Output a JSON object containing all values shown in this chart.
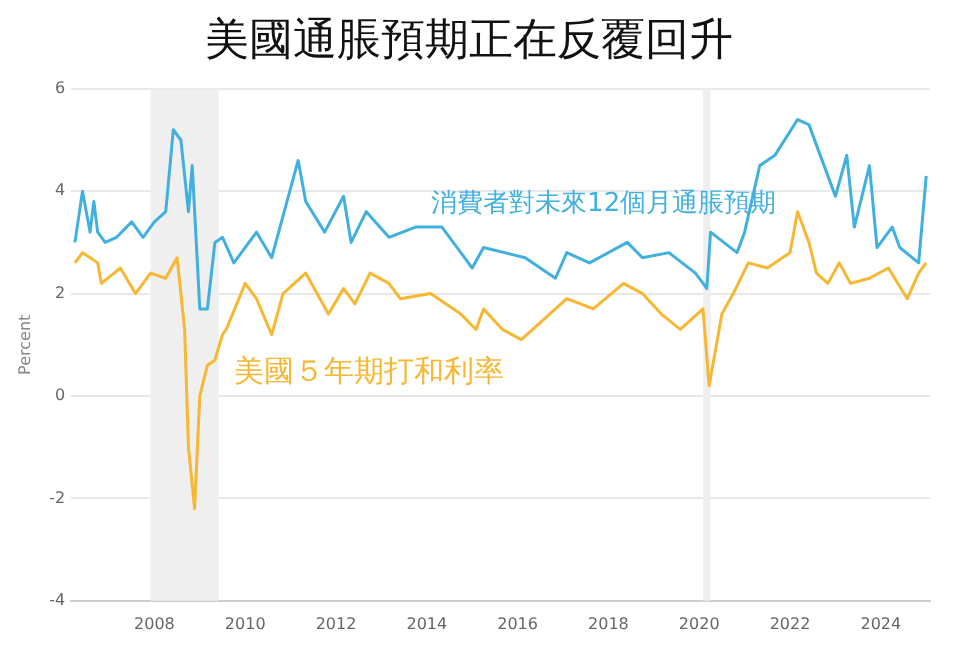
{
  "chart_data": {
    "type": "line",
    "title": "美國通脹預期正在反覆回升",
    "ylabel": "Percent",
    "xlim": [
      "2006-03",
      "2025-02"
    ],
    "xticks": [
      "2008",
      "2010",
      "2012",
      "2014",
      "2016",
      "2018",
      "2020",
      "2022",
      "2024"
    ],
    "ylim": [
      -4,
      6
    ],
    "yticks": [
      -4,
      -2,
      0,
      2,
      4,
      6
    ],
    "grid": "y",
    "legend": false,
    "marker": "none",
    "line_style": "solid",
    "bands": [
      {
        "axis": "x",
        "from": "2007-12",
        "to": "2009-06",
        "color": "#efefef"
      },
      {
        "axis": "x",
        "from": "2020-02",
        "to": "2020-04",
        "color": "#efefef"
      }
    ],
    "series": [
      {
        "name": "消費者對未來12個月通脹預期",
        "color": "#41b0df",
        "x": [
          "2006-04",
          "2006-06",
          "2006-08",
          "2006-09",
          "2006-10",
          "2006-12",
          "2007-03",
          "2007-07",
          "2007-10",
          "2008-01",
          "2008-04",
          "2008-06",
          "2008-08",
          "2008-10",
          "2008-11",
          "2009-01",
          "2009-03",
          "2009-05",
          "2009-07",
          "2009-10",
          "2010-04",
          "2010-08",
          "2011-03",
          "2011-05",
          "2011-10",
          "2012-03",
          "2012-05",
          "2012-09",
          "2013-03",
          "2013-10",
          "2014-05",
          "2015-01",
          "2015-04",
          "2016-03",
          "2016-11",
          "2017-02",
          "2017-08",
          "2018-06",
          "2018-10",
          "2019-05",
          "2019-12",
          "2020-03",
          "2020-04",
          "2020-11",
          "2021-01",
          "2021-05",
          "2021-09",
          "2022-03",
          "2022-06",
          "2022-09",
          "2023-01",
          "2023-04",
          "2023-06",
          "2023-10",
          "2023-12",
          "2024-04",
          "2024-06",
          "2024-11",
          "2025-01"
        ],
        "values": [
          3.0,
          4.0,
          3.2,
          3.8,
          3.2,
          3.0,
          3.1,
          3.4,
          3.1,
          3.4,
          3.6,
          5.2,
          5.0,
          3.6,
          4.5,
          1.7,
          1.7,
          3.0,
          3.1,
          2.6,
          3.2,
          2.7,
          4.6,
          3.8,
          3.2,
          3.9,
          3.0,
          3.6,
          3.1,
          3.3,
          3.3,
          2.5,
          2.9,
          2.7,
          2.3,
          2.8,
          2.6,
          3.0,
          2.7,
          2.8,
          2.4,
          2.1,
          3.2,
          2.8,
          3.2,
          4.5,
          4.7,
          5.4,
          5.3,
          4.7,
          3.9,
          4.7,
          3.3,
          4.5,
          2.9,
          3.3,
          2.9,
          2.6,
          4.3
        ]
      },
      {
        "name": "美國５年期打和利率",
        "color": "#f7b733",
        "x": [
          "2006-04",
          "2006-06",
          "2006-10",
          "2006-11",
          "2007-04",
          "2007-08",
          "2007-12",
          "2008-04",
          "2008-07",
          "2008-09",
          "2008-10",
          "2008-11-20",
          "2009-01",
          "2009-03",
          "2009-05",
          "2009-07",
          "2009-08",
          "2010-01",
          "2010-04",
          "2010-08",
          "2010-11",
          "2011-05",
          "2011-08",
          "2011-11",
          "2012-03",
          "2012-06",
          "2012-10",
          "2013-03",
          "2013-06",
          "2014-02",
          "2014-10",
          "2015-02",
          "2015-04",
          "2015-09",
          "2016-02",
          "2016-05",
          "2017-02",
          "2017-09",
          "2018-05",
          "2018-10",
          "2019-03",
          "2019-08",
          "2020-02",
          "2020-03-20",
          "2020-07",
          "2020-10",
          "2021-02",
          "2021-07",
          "2022-01",
          "2022-03",
          "2022-06",
          "2022-08",
          "2022-11",
          "2023-02",
          "2023-05",
          "2023-10",
          "2024-03",
          "2024-08",
          "2024-11",
          "2025-01"
        ],
        "values": [
          2.6,
          2.8,
          2.6,
          2.2,
          2.5,
          2.0,
          2.4,
          2.3,
          2.7,
          1.3,
          -1.0,
          -2.2,
          0.0,
          0.6,
          0.7,
          1.2,
          1.3,
          2.2,
          1.9,
          1.2,
          2.0,
          2.4,
          2.0,
          1.6,
          2.1,
          1.8,
          2.4,
          2.2,
          1.9,
          2.0,
          1.6,
          1.3,
          1.7,
          1.3,
          1.1,
          1.3,
          1.9,
          1.7,
          2.2,
          2.0,
          1.6,
          1.3,
          1.7,
          0.2,
          1.6,
          2.0,
          2.6,
          2.5,
          2.8,
          3.6,
          3.0,
          2.4,
          2.2,
          2.6,
          2.2,
          2.3,
          2.5,
          1.9,
          2.4,
          2.6
        ]
      }
    ]
  }
}
